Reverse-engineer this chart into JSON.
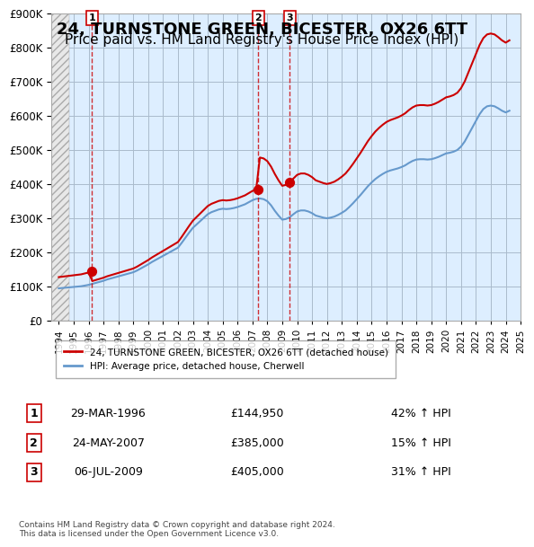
{
  "title": "24, TURNSTONE GREEN, BICESTER, OX26 6TT",
  "subtitle": "Price paid vs. HM Land Registry's House Price Index (HPI)",
  "title_fontsize": 13,
  "subtitle_fontsize": 11,
  "hpi_years": [
    1994,
    1994.25,
    1994.5,
    1994.75,
    1995,
    1995.25,
    1995.5,
    1995.75,
    1996,
    1996.25,
    1996.5,
    1996.75,
    1997,
    1997.25,
    1997.5,
    1997.75,
    1998,
    1998.25,
    1998.5,
    1998.75,
    1999,
    1999.25,
    1999.5,
    1999.75,
    2000,
    2000.25,
    2000.5,
    2000.75,
    2001,
    2001.25,
    2001.5,
    2001.75,
    2002,
    2002.25,
    2002.5,
    2002.75,
    2003,
    2003.25,
    2003.5,
    2003.75,
    2004,
    2004.25,
    2004.5,
    2004.75,
    2005,
    2005.25,
    2005.5,
    2005.75,
    2006,
    2006.25,
    2006.5,
    2006.75,
    2007,
    2007.25,
    2007.5,
    2007.75,
    2008,
    2008.25,
    2008.5,
    2008.75,
    2009,
    2009.25,
    2009.5,
    2009.75,
    2010,
    2010.25,
    2010.5,
    2010.75,
    2011,
    2011.25,
    2011.5,
    2011.75,
    2012,
    2012.25,
    2012.5,
    2012.75,
    2013,
    2013.25,
    2013.5,
    2013.75,
    2014,
    2014.25,
    2014.5,
    2014.75,
    2015,
    2015.25,
    2015.5,
    2015.75,
    2016,
    2016.25,
    2016.5,
    2016.75,
    2017,
    2017.25,
    2017.5,
    2017.75,
    2018,
    2018.25,
    2018.5,
    2018.75,
    2019,
    2019.25,
    2019.5,
    2019.75,
    2020,
    2020.25,
    2020.5,
    2020.75,
    2021,
    2021.25,
    2021.5,
    2021.75,
    2022,
    2022.25,
    2022.5,
    2022.75,
    2023,
    2023.25,
    2023.5,
    2023.75,
    2024,
    2024.25
  ],
  "hpi_values": [
    95000,
    96000,
    97000,
    98000,
    99000,
    100000,
    101000,
    103000,
    105000,
    108000,
    111000,
    114000,
    117000,
    121000,
    124000,
    127000,
    130000,
    133000,
    136000,
    139000,
    142000,
    147000,
    153000,
    159000,
    165000,
    172000,
    178000,
    184000,
    190000,
    196000,
    202000,
    208000,
    214000,
    228000,
    243000,
    258000,
    272000,
    282000,
    292000,
    302000,
    312000,
    318000,
    322000,
    326000,
    328000,
    327000,
    328000,
    330000,
    333000,
    337000,
    341000,
    347000,
    353000,
    357000,
    358000,
    356000,
    350000,
    338000,
    322000,
    308000,
    296000,
    298000,
    303000,
    312000,
    320000,
    323000,
    323000,
    320000,
    315000,
    308000,
    305000,
    302000,
    300000,
    302000,
    305000,
    310000,
    316000,
    323000,
    333000,
    344000,
    356000,
    368000,
    381000,
    394000,
    405000,
    415000,
    423000,
    430000,
    436000,
    440000,
    443000,
    446000,
    450000,
    455000,
    462000,
    468000,
    472000,
    473000,
    473000,
    472000,
    473000,
    476000,
    480000,
    485000,
    490000,
    492000,
    495000,
    500000,
    510000,
    525000,
    545000,
    565000,
    585000,
    605000,
    620000,
    628000,
    630000,
    628000,
    622000,
    615000,
    610000,
    615000
  ],
  "price_paid_years": [
    1996.23,
    2007.39,
    2009.51
  ],
  "price_paid_values": [
    144950,
    385000,
    405000
  ],
  "marker_labels": [
    "1",
    "2",
    "3"
  ],
  "marker_label_years": [
    1996.23,
    2007.39,
    2009.51
  ],
  "marker_label_offsets": [
    0,
    0,
    0
  ],
  "dashed_line_years": [
    1996.23,
    2007.39,
    2009.51
  ],
  "red_color": "#cc0000",
  "blue_color": "#6699cc",
  "hatch_color": "#cccccc",
  "grid_color": "#aabbcc",
  "bg_plot_color": "#ddeeff",
  "bg_hatch_color": "#e8e8e8",
  "ylim": [
    0,
    900000
  ],
  "yticks": [
    0,
    100000,
    200000,
    300000,
    400000,
    500000,
    600000,
    700000,
    800000,
    900000
  ],
  "xlim": [
    1993.5,
    2025
  ],
  "legend_label_red": "24, TURNSTONE GREEN, BICESTER, OX26 6TT (detached house)",
  "legend_label_blue": "HPI: Average price, detached house, Cherwell",
  "table_rows": [
    {
      "num": "1",
      "date": "29-MAR-1996",
      "price": "£144,950",
      "change": "42% ↑ HPI"
    },
    {
      "num": "2",
      "date": "24-MAY-2007",
      "price": "£385,000",
      "change": "15% ↑ HPI"
    },
    {
      "num": "3",
      "date": "06-JUL-2009",
      "price": "£405,000",
      "change": "31% ↑ HPI"
    }
  ],
  "footnote": "Contains HM Land Registry data © Crown copyright and database right 2024.\nThis data is licensed under the Open Government Licence v3.0."
}
